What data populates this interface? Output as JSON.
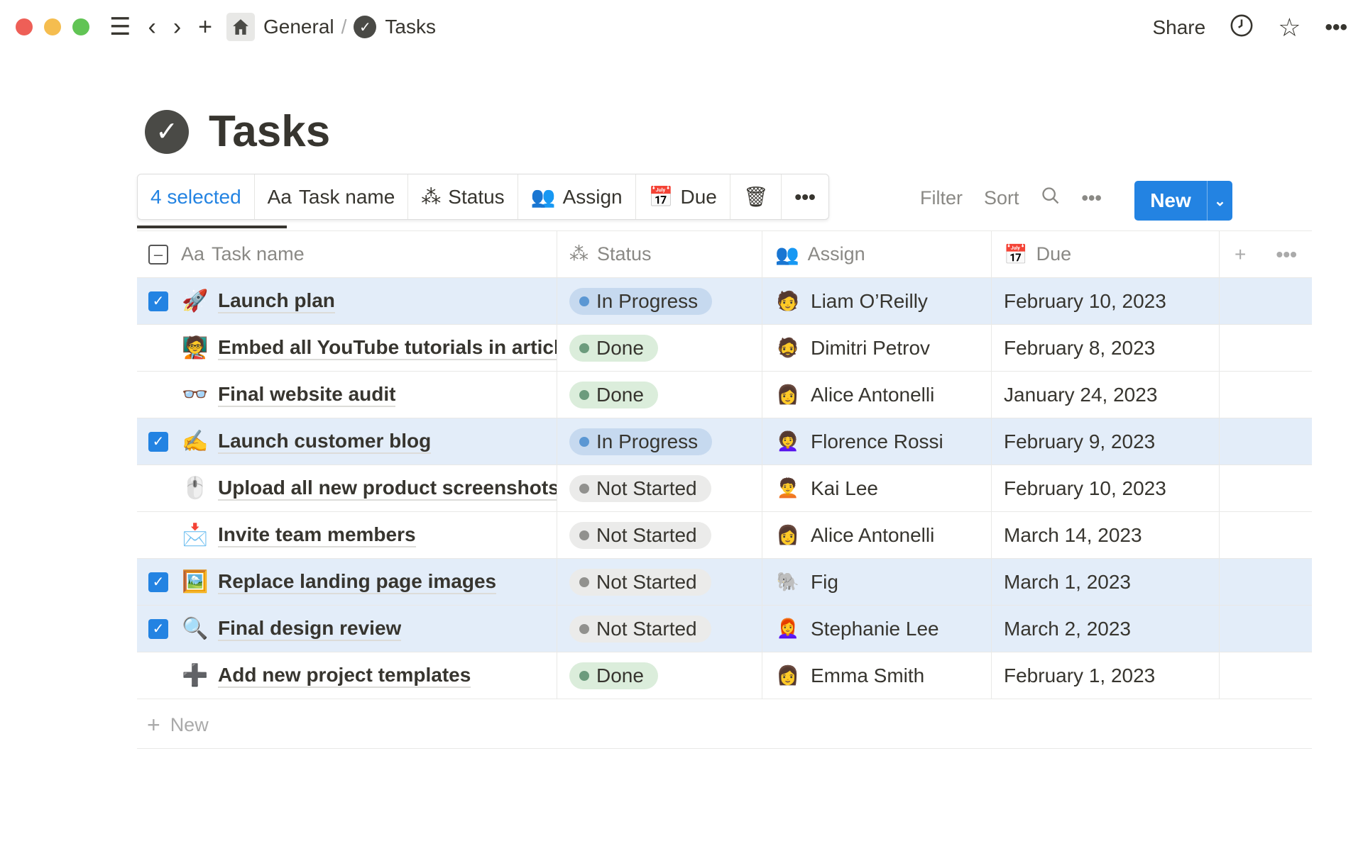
{
  "window": {
    "controls": [
      "#ee5f57",
      "#f5bd4f",
      "#61c454"
    ]
  },
  "topbar": {
    "breadcrumb": [
      "General",
      "Tasks"
    ],
    "share": "Share",
    "icons": [
      "menu-icon",
      "back-icon",
      "forward-icon",
      "plus-icon",
      "home-icon",
      "clock-icon",
      "star-icon",
      "more-icon"
    ]
  },
  "page": {
    "title": "Tasks"
  },
  "selection_bar": {
    "selected": "4 selected",
    "task_name": "Task name",
    "task_prefix": "Aa",
    "status": "Status",
    "assign": "Assign",
    "due": "Due"
  },
  "views": {
    "filter": "Filter",
    "sort": "Sort",
    "new": "New"
  },
  "columns": {
    "task_prefix": "Aa",
    "task": "Task name",
    "status": "Status",
    "assign": "Assign",
    "due": "Due"
  },
  "status_colors": {
    "In Progress": {
      "bg": "#c6d9ef",
      "dot": "#5b97d3"
    },
    "Done": {
      "bg": "#dbeddb",
      "dot": "#6c9b7d"
    },
    "Not Started": {
      "bg": "#ebebea",
      "dot": "#91918e"
    }
  },
  "rows": [
    {
      "selected": true,
      "emoji": "🚀",
      "name": "Launch plan",
      "status": "In Progress",
      "assignee": "Liam O’Reilly",
      "due": "February 10, 2023"
    },
    {
      "selected": false,
      "emoji": "🧑‍🏫",
      "name": "Embed all YouTube tutorials in articles",
      "status": "Done",
      "assignee": "Dimitri Petrov",
      "due": "February 8, 2023"
    },
    {
      "selected": false,
      "emoji": "👓",
      "name": "Final website audit",
      "status": "Done",
      "assignee": "Alice Antonelli",
      "due": "January 24, 2023"
    },
    {
      "selected": true,
      "emoji": "✍️",
      "name": "Launch customer blog",
      "status": "In Progress",
      "assignee": "Florence Rossi",
      "due": "February 9, 2023"
    },
    {
      "selected": false,
      "emoji": "🖱️",
      "name": "Upload all new product screenshots",
      "status": "Not Started",
      "assignee": "Kai Lee",
      "due": "February 10, 2023"
    },
    {
      "selected": false,
      "emoji": "📩",
      "name": "Invite team members",
      "status": "Not Started",
      "assignee": "Alice Antonelli",
      "due": "March 14, 2023"
    },
    {
      "selected": true,
      "emoji": "🖼️",
      "name": "Replace landing page images",
      "status": "Not Started",
      "assignee": "Fig",
      "due": "March 1, 2023"
    },
    {
      "selected": true,
      "emoji": "🔍",
      "name": "Final design review",
      "status": "Not Started",
      "assignee": "Stephanie Lee",
      "due": "March 2, 2023"
    },
    {
      "selected": false,
      "emoji": "➕",
      "name": "Add new project templates",
      "status": "Done",
      "assignee": "Emma Smith",
      "due": "February 1, 2023"
    }
  ],
  "add_row": {
    "label": "New"
  }
}
